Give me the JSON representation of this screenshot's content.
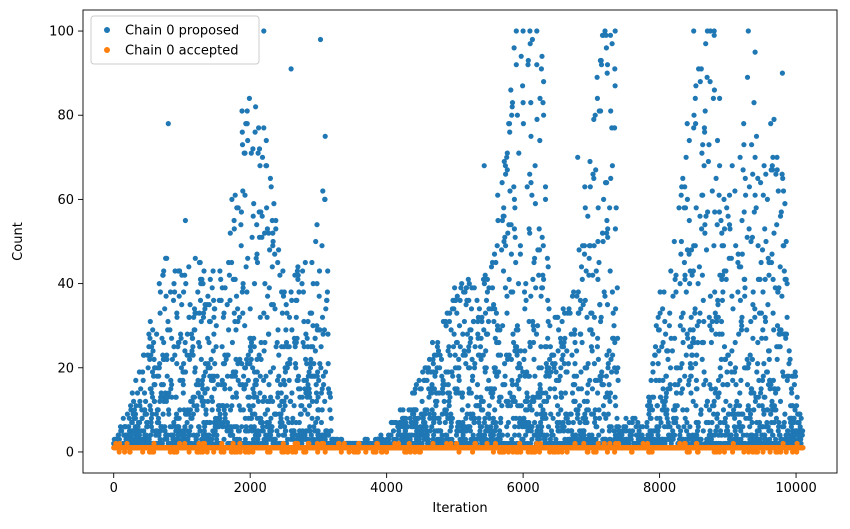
{
  "chart_data": {
    "type": "scatter",
    "title": "",
    "xlabel": "Iteration",
    "ylabel": "Count",
    "xlim": [
      -450,
      10600
    ],
    "ylim": [
      -5,
      105
    ],
    "x_ticks": [
      0,
      2000,
      4000,
      6000,
      8000,
      10000
    ],
    "y_ticks": [
      0,
      20,
      40,
      60,
      80,
      100
    ],
    "grid": false,
    "legend_position": "top-left",
    "colors": {
      "proposed": "#1f77b4",
      "accepted": "#ff7f0e"
    },
    "iterations": 10100,
    "series": [
      {
        "name": "Chain 0 proposed",
        "color": "#1f77b4",
        "marker": "circle",
        "description_of_distribution": "mostly 1-20, bursts up to 100",
        "envelope": [
          {
            "x": 0,
            "max": 3
          },
          {
            "x": 300,
            "max": 15
          },
          {
            "x": 800,
            "max": 50
          },
          {
            "x": 1400,
            "max": 45
          },
          {
            "x": 1700,
            "max": 60
          },
          {
            "x": 1900,
            "max": 85
          },
          {
            "x": 2100,
            "max": 100
          },
          {
            "x": 2250,
            "max": 80
          },
          {
            "x": 2500,
            "max": 45
          },
          {
            "x": 2900,
            "max": 45
          },
          {
            "x": 3100,
            "max": 70
          },
          {
            "x": 3200,
            "max": 3
          },
          {
            "x": 3600,
            "max": 2
          },
          {
            "x": 4000,
            "max": 5
          },
          {
            "x": 4500,
            "max": 18
          },
          {
            "x": 5000,
            "max": 40
          },
          {
            "x": 5500,
            "max": 45
          },
          {
            "x": 5900,
            "max": 100
          },
          {
            "x": 6300,
            "max": 100
          },
          {
            "x": 6400,
            "max": 30
          },
          {
            "x": 6800,
            "max": 45
          },
          {
            "x": 7100,
            "max": 100
          },
          {
            "x": 7350,
            "max": 100
          },
          {
            "x": 7400,
            "max": 8
          },
          {
            "x": 7800,
            "max": 8
          },
          {
            "x": 8000,
            "max": 40
          },
          {
            "x": 8300,
            "max": 60
          },
          {
            "x": 8500,
            "max": 100
          },
          {
            "x": 8800,
            "max": 100
          },
          {
            "x": 9000,
            "max": 60
          },
          {
            "x": 9300,
            "max": 100
          },
          {
            "x": 9500,
            "max": 70
          },
          {
            "x": 9800,
            "max": 90
          },
          {
            "x": 9900,
            "max": 30
          },
          {
            "x": 10100,
            "max": 5
          }
        ],
        "sample_points": [
          [
            800,
            78
          ],
          [
            1050,
            55
          ],
          [
            2200,
            100
          ],
          [
            2600,
            91
          ],
          [
            3030,
            98
          ],
          [
            3100,
            75
          ],
          [
            5430,
            68
          ],
          [
            5900,
            100
          ],
          [
            6000,
            100
          ],
          [
            6100,
            100
          ],
          [
            6200,
            100
          ],
          [
            6300,
            88
          ],
          [
            6800,
            70
          ],
          [
            7200,
            100
          ],
          [
            7350,
            100
          ],
          [
            8500,
            100
          ],
          [
            8700,
            100
          ],
          [
            8800,
            100
          ],
          [
            9300,
            100
          ],
          [
            9400,
            95
          ],
          [
            9800,
            90
          ]
        ]
      },
      {
        "name": "Chain 0 accepted",
        "color": "#ff7f0e",
        "marker": "circle",
        "values_range": [
          0,
          2
        ],
        "typical": 1
      }
    ],
    "legend": [
      "Chain 0 proposed",
      "Chain 0 accepted"
    ]
  }
}
